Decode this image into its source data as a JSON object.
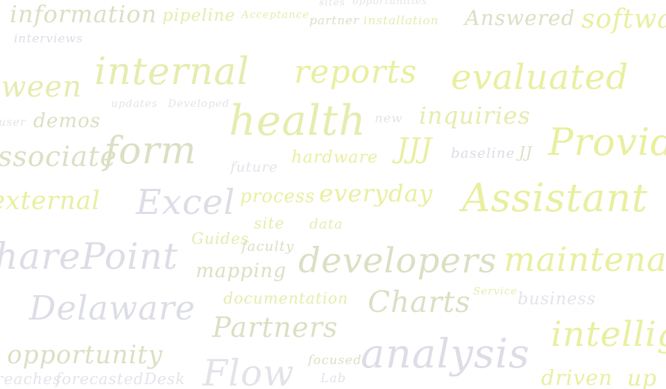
{
  "word_cloud": {
    "palette": {
      "yellow": "#e6ecae",
      "bright_yellow": "#e9ef9f",
      "grey_green": "#dcdfc3",
      "lavender": "#dcdde6",
      "light_grey": "#e3e4ea"
    },
    "words": [
      "information",
      "pipeline",
      "Acceptance",
      "sites",
      "opportunities",
      "partner",
      "installation",
      "Answered",
      "software",
      "interviews",
      "between",
      "internal",
      "reports",
      "evaluated",
      "updates",
      "Developed",
      "user",
      "demos",
      "health",
      "new",
      "inquiries",
      "associate",
      "form",
      "JJJ",
      "baseline",
      "JJ",
      "Provide",
      "future",
      "hardware",
      "external",
      "Excel",
      "process",
      "everyday",
      "Assistant",
      "site",
      "data",
      "Guides",
      "faculty",
      "SharePoint",
      "mapping",
      "developers",
      "maintenance",
      "Service",
      "documentation",
      "business",
      "Delaware",
      "Charts",
      "Partners",
      "intelligence",
      "opportunity",
      "focused",
      "analysis",
      "reaches",
      "forecasted",
      "Desk",
      "Flow",
      "Lab",
      "driven",
      "up"
    ]
  }
}
